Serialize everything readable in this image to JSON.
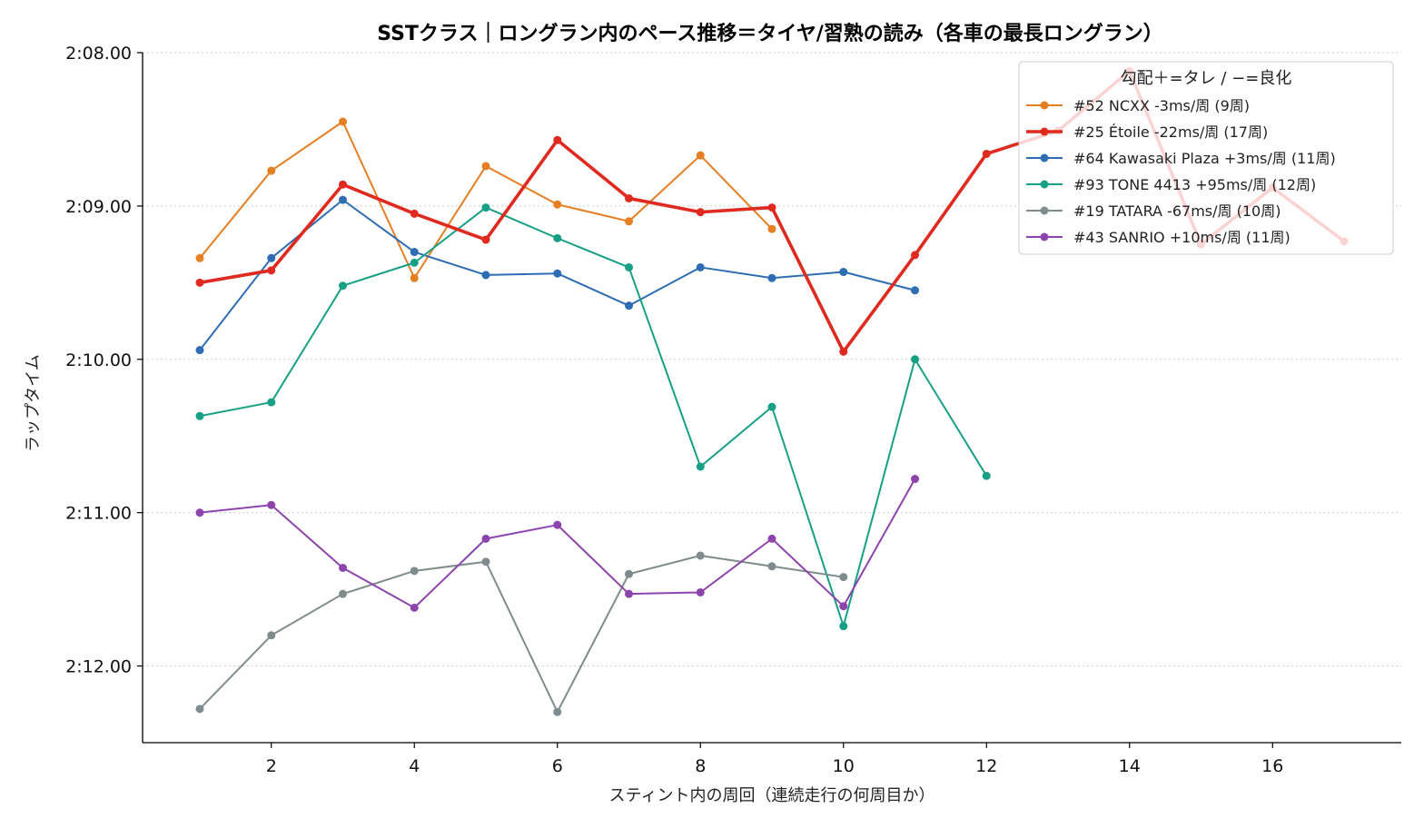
{
  "chart_data": {
    "type": "line",
    "title": "SSTクラス｜ロングラン内のペース推移＝タイヤ/習熟の読み（各車の最長ロングラン）",
    "xlabel": "スティント内の周回（連続走行の何周目か）",
    "ylabel": "ラップタイム",
    "xlim": [
      0.2,
      17.8
    ],
    "ylim": [
      132.5,
      128.0
    ],
    "y_inverted": true,
    "x_ticks": [
      2,
      4,
      6,
      8,
      10,
      12,
      14,
      16
    ],
    "y_ticks": [
      128,
      129,
      130,
      131,
      132
    ],
    "y_tick_labels": [
      "2:08.00",
      "2:09.00",
      "2:10.00",
      "2:11.00",
      "2:12.00"
    ],
    "grid": "y-dotted",
    "legend_title": "勾配＋=タレ / −=良化",
    "legend_position": "top-right",
    "series": [
      {
        "name": "#52 NCXX  -3ms/周 (9周)",
        "color": "#e67e22",
        "width": 2,
        "x": [
          1,
          2,
          3,
          4,
          5,
          6,
          7,
          8,
          9
        ],
        "y": [
          129.34,
          128.77,
          128.45,
          129.47,
          128.74,
          128.99,
          129.1,
          128.67,
          129.15
        ]
      },
      {
        "name": "#25 Étoile  -22ms/周 (17周)",
        "color": "#e02a1f",
        "width": 3.6,
        "x": [
          1,
          2,
          3,
          4,
          5,
          6,
          7,
          8,
          9,
          10,
          11,
          12,
          13,
          14,
          15,
          16,
          17
        ],
        "y": [
          129.5,
          129.42,
          128.86,
          129.05,
          129.22,
          128.57,
          128.95,
          129.04,
          129.01,
          129.95,
          129.32,
          128.66,
          128.51,
          128.12,
          129.25,
          128.88,
          129.23
        ]
      },
      {
        "name": "#64 Kawasaki Plaza  +3ms/周 (11周)",
        "color": "#2e6db4",
        "width": 2,
        "x": [
          1,
          2,
          3,
          4,
          5,
          6,
          7,
          8,
          9,
          10,
          11
        ],
        "y": [
          129.94,
          129.34,
          128.96,
          129.3,
          129.45,
          129.44,
          129.65,
          129.4,
          129.47,
          129.43,
          129.55
        ]
      },
      {
        "name": "#93 TONE 4413  +95ms/周 (12周)",
        "color": "#17a085",
        "width": 2,
        "x": [
          1,
          2,
          3,
          4,
          5,
          6,
          7,
          8,
          9,
          10,
          11,
          12
        ],
        "y": [
          130.37,
          130.28,
          129.52,
          129.37,
          129.01,
          129.21,
          129.4,
          130.7,
          130.31,
          131.74,
          130.0,
          130.76
        ]
      },
      {
        "name": "#19 TATARA  -67ms/周 (10周)",
        "color": "#7f8c8d",
        "width": 2,
        "x": [
          1,
          2,
          3,
          4,
          5,
          6,
          7,
          8,
          9,
          10
        ],
        "y": [
          132.28,
          131.8,
          131.53,
          131.38,
          131.32,
          132.3,
          131.4,
          131.28,
          131.35,
          131.42
        ]
      },
      {
        "name": "#43 SANRIO  +10ms/周 (11周)",
        "color": "#8e44ad",
        "width": 2,
        "x": [
          1,
          2,
          3,
          4,
          5,
          6,
          7,
          8,
          9,
          10,
          11
        ],
        "y": [
          131.0,
          130.95,
          131.36,
          131.62,
          131.17,
          131.08,
          131.53,
          131.52,
          131.17,
          131.61,
          130.78
        ]
      }
    ]
  }
}
